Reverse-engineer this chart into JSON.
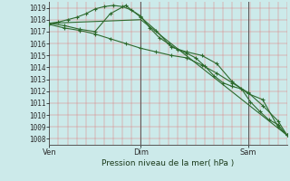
{
  "xlabel": "Pression niveau de la mer( hPa )",
  "bg_color": "#cceaea",
  "line_color": "#2d6a2d",
  "ylim": [
    1007.5,
    1019.5
  ],
  "yticks": [
    1008,
    1009,
    1010,
    1011,
    1012,
    1013,
    1014,
    1015,
    1016,
    1017,
    1018,
    1019
  ],
  "xtick_labels": [
    "Ven",
    "Dim",
    "Sam"
  ],
  "xtick_positions": [
    0.0,
    0.385,
    0.835
  ],
  "xlim": [
    0.0,
    1.0
  ],
  "vline_positions": [
    0.0,
    0.385,
    0.835
  ],
  "line1_x": [
    0.0,
    0.038,
    0.077,
    0.115,
    0.154,
    0.192,
    0.231,
    0.269,
    0.308,
    0.346,
    0.385,
    0.423,
    0.462,
    0.5,
    0.538,
    0.577,
    0.615,
    0.654,
    0.692,
    0.731,
    0.769,
    0.808,
    0.846,
    0.885,
    0.923,
    0.962,
    1.0
  ],
  "line1_y": [
    1017.7,
    1017.8,
    1018.0,
    1018.2,
    1018.5,
    1018.9,
    1019.1,
    1019.2,
    1019.1,
    1018.8,
    1018.3,
    1017.3,
    1016.5,
    1016.0,
    1015.5,
    1015.2,
    1014.8,
    1014.1,
    1013.3,
    1012.7,
    1012.4,
    1012.2,
    1011.1,
    1010.3,
    1009.6,
    1009.2,
    1008.3
  ],
  "line2_x": [
    0.0,
    0.064,
    0.128,
    0.192,
    0.256,
    0.321,
    0.385,
    0.449,
    0.513,
    0.577,
    0.641,
    0.705,
    0.769,
    0.835,
    0.897,
    0.962,
    1.0
  ],
  "line2_y": [
    1017.7,
    1017.5,
    1017.2,
    1017.0,
    1018.5,
    1019.2,
    1018.2,
    1017.1,
    1015.7,
    1015.3,
    1015.0,
    1014.3,
    1012.8,
    1011.8,
    1011.3,
    1009.0,
    1008.3
  ],
  "line3_x": [
    0.0,
    0.385,
    1.0
  ],
  "line3_y": [
    1017.7,
    1018.0,
    1008.3
  ],
  "line4_x": [
    0.0,
    0.064,
    0.128,
    0.192,
    0.256,
    0.321,
    0.385,
    0.449,
    0.513,
    0.577,
    0.641,
    0.705,
    0.769,
    0.835,
    0.897,
    0.962,
    1.0
  ],
  "line4_y": [
    1017.6,
    1017.3,
    1017.1,
    1016.8,
    1016.4,
    1016.0,
    1015.6,
    1015.3,
    1015.0,
    1014.8,
    1014.2,
    1013.5,
    1012.7,
    1011.9,
    1010.8,
    1009.5,
    1008.3
  ]
}
